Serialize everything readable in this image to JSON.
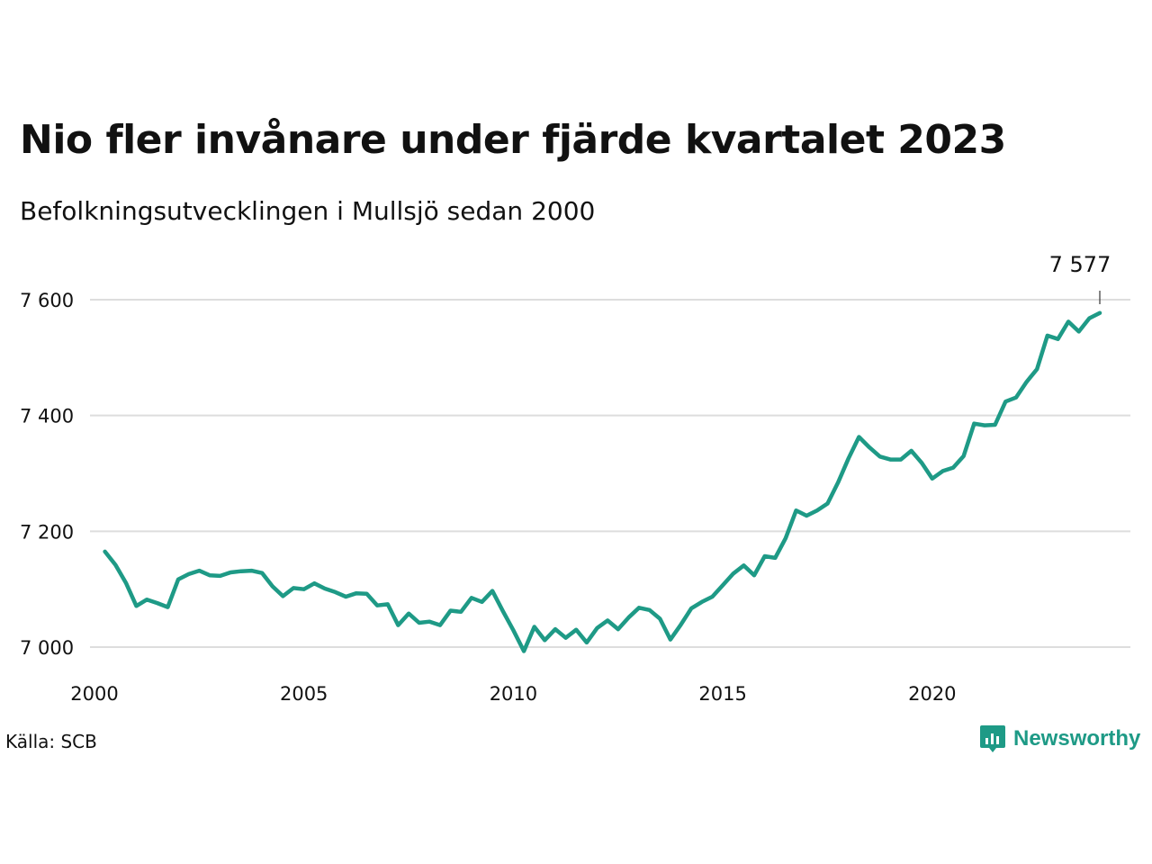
{
  "title": "Nio fler invånare under fjärde kvartalet 2023",
  "subtitle": "Befolkningsutvecklingen i Mullsjö sedan 2000",
  "source": "Källa: SCB",
  "brand": {
    "name": "Newsworthy",
    "icon": "newsworthy-logo-icon"
  },
  "colors": {
    "line": "#1e9a86",
    "grid": "#dddddd",
    "text": "#111111"
  },
  "chart_data": {
    "type": "line",
    "title": "Nio fler invånare under fjärde kvartalet 2023",
    "subtitle": "Befolkningsutvecklingen i Mullsjö sedan 2000",
    "xlabel": "",
    "ylabel": "",
    "x_ticks": [
      "2000",
      "2005",
      "2010",
      "2015",
      "2020"
    ],
    "y_ticks": [
      "7 000",
      "7 200",
      "7 400",
      "7 600"
    ],
    "y_tick_values": [
      7000,
      7200,
      7400,
      7600
    ],
    "xlim": [
      2000,
      2024
    ],
    "ylim": [
      6950,
      7640
    ],
    "grid": true,
    "last_value_label": "7 577",
    "series": [
      {
        "x": [
          2000.25,
          2000.5,
          2000.75,
          2001,
          2001.25,
          2001.5,
          2001.75,
          2002,
          2002.25,
          2002.5,
          2002.75,
          2003,
          2003.25,
          2003.5,
          2003.75,
          2004,
          2004.25,
          2004.5,
          2004.75,
          2005,
          2005.25,
          2005.5,
          2005.75,
          2006,
          2006.25,
          2006.5,
          2006.75,
          2007,
          2007.25,
          2007.5,
          2007.75,
          2008,
          2008.25,
          2008.5,
          2008.75,
          2009,
          2009.25,
          2009.5,
          2009.75,
          2010,
          2010.25,
          2010.5,
          2010.75,
          2011,
          2011.25,
          2011.5,
          2011.75,
          2012,
          2012.25,
          2012.5,
          2012.75,
          2013,
          2013.25,
          2013.5,
          2013.75,
          2014,
          2014.25,
          2014.5,
          2014.75,
          2015,
          2015.25,
          2015.5,
          2015.75,
          2016,
          2016.25,
          2016.5,
          2016.75,
          2017,
          2017.25,
          2017.5,
          2017.75,
          2018,
          2018.25,
          2018.5,
          2018.75,
          2019,
          2019.25,
          2019.5,
          2019.75,
          2020,
          2020.25,
          2020.5,
          2020.75,
          2021,
          2021.25,
          2021.5,
          2021.75,
          2022,
          2022.25,
          2022.5,
          2022.75,
          2023,
          2023.25,
          2023.5,
          2023.75,
          2024
        ],
        "values": [
          7165,
          7142,
          7111,
          7071,
          7082,
          7076,
          7069,
          7117,
          7126,
          7132,
          7124,
          7123,
          7129,
          7131,
          7132,
          7128,
          7105,
          7088,
          7102,
          7100,
          7110,
          7101,
          7095,
          7087,
          7093,
          7092,
          7072,
          7074,
          7038,
          7058,
          7042,
          7044,
          7038,
          7063,
          7061,
          7085,
          7078,
          7097,
          7062,
          7029,
          6993,
          7035,
          7012,
          7031,
          7016,
          7030,
          7008,
          7033,
          7046,
          7031,
          7051,
          7068,
          7064,
          7049,
          7013,
          7039,
          7067,
          7078,
          7087,
          7107,
          7127,
          7141,
          7124,
          7157,
          7154,
          7188,
          7236,
          7227,
          7236,
          7248,
          7284,
          7326,
          7363,
          7345,
          7329,
          7324,
          7324,
          7339,
          7318,
          7291,
          7304,
          7310,
          7330,
          7386,
          7383,
          7384,
          7424,
          7431,
          7458,
          7480,
          7538,
          7532,
          7562,
          7545,
          7568,
          7577
        ]
      }
    ]
  }
}
